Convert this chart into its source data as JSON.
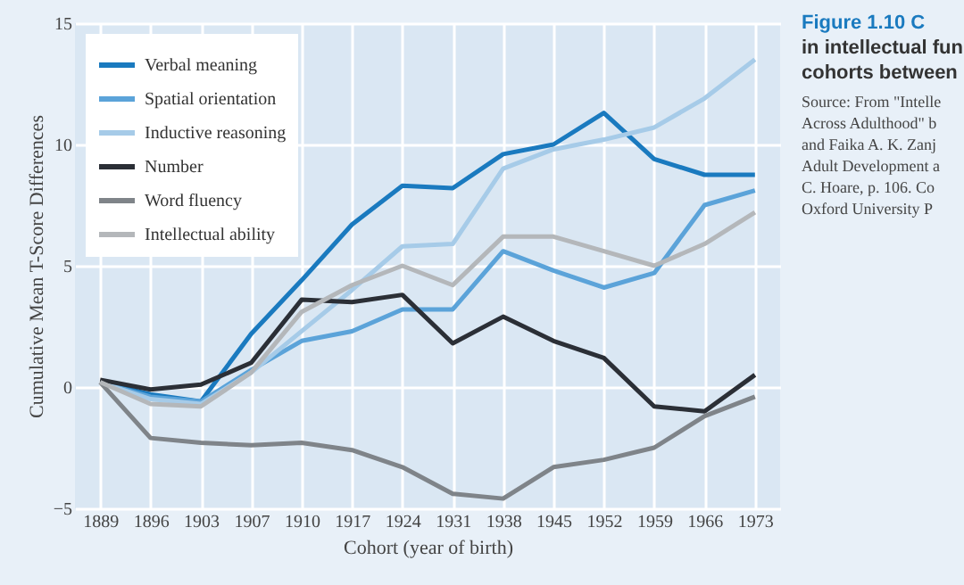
{
  "chart_data": {
    "type": "line",
    "title": "Figure 1.10  C\nin intellectual fun\ncohorts between",
    "annotations": [
      "Source: From \"Intelle\nAcross Adulthood\" b\nand Faika A. K. Zanj\nAdult Development a\nC. Hoare, p. 106. Co\nOxford University P"
    ],
    "xlabel": "Cohort (year of birth)",
    "ylabel": "Cumulative Mean T-Score Differences",
    "categories": [
      "1889",
      "1896",
      "1903",
      "1907",
      "1910",
      "1917",
      "1924",
      "1931",
      "1938",
      "1945",
      "1952",
      "1959",
      "1966",
      "1973"
    ],
    "ylim": [
      -5,
      15
    ],
    "yticks": [
      -5,
      0,
      5,
      10,
      15
    ],
    "grid": true,
    "legend": "top left",
    "line_style": "solid",
    "marker": "none",
    "series": [
      {
        "name": "Verbal meaning",
        "color": "#1a7abf",
        "values": [
          0.2,
          -0.3,
          -0.6,
          2.2,
          4.4,
          6.7,
          8.3,
          8.2,
          9.6,
          10.0,
          11.3,
          9.4,
          8.75,
          8.75
        ]
      },
      {
        "name": "Spatial orientation",
        "color": "#5ba3d9",
        "values": [
          0.2,
          -0.4,
          -0.6,
          0.7,
          1.9,
          2.3,
          3.2,
          3.2,
          5.6,
          4.8,
          4.1,
          4.7,
          7.5,
          8.1
        ]
      },
      {
        "name": "Inductive reasoning",
        "color": "#a6cbe8",
        "values": [
          0.2,
          -0.5,
          -0.7,
          0.6,
          2.3,
          4.0,
          5.8,
          5.9,
          9.0,
          9.8,
          10.2,
          10.7,
          11.9,
          13.5
        ]
      },
      {
        "name": "Number",
        "color": "#2b2f36",
        "values": [
          0.3,
          -0.1,
          0.1,
          1.0,
          3.6,
          3.5,
          3.8,
          1.8,
          2.9,
          1.9,
          1.2,
          -0.8,
          -1.0,
          0.5
        ]
      },
      {
        "name": "Word fluency",
        "color": "#7f8489",
        "values": [
          0.2,
          -2.1,
          -2.3,
          -2.4,
          -2.3,
          -2.6,
          -3.3,
          -4.4,
          -4.6,
          -3.3,
          -3.0,
          -2.5,
          -1.2,
          -0.4
        ]
      },
      {
        "name": "Intellectual ability",
        "color": "#b4b7ba",
        "values": [
          0.2,
          -0.7,
          -0.8,
          0.6,
          3.1,
          4.2,
          5.0,
          4.2,
          6.2,
          6.2,
          5.6,
          5.0,
          5.9,
          7.2
        ]
      }
    ]
  }
}
